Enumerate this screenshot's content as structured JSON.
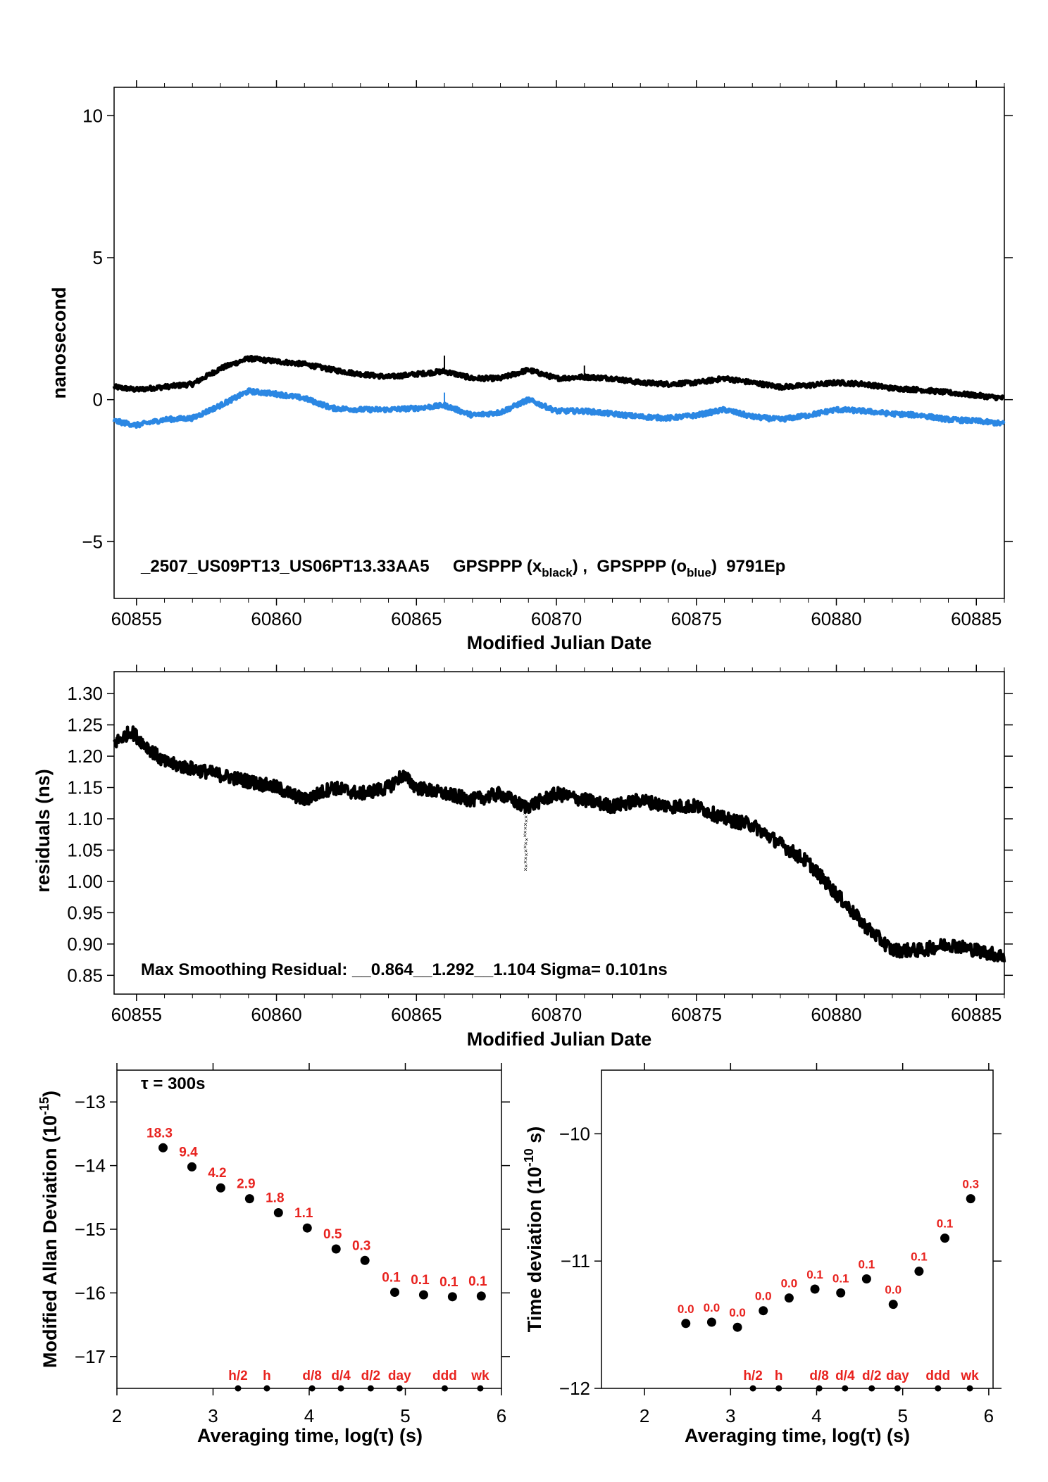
{
  "colors": {
    "black_series": "#000000",
    "blue_series": "#2b87e3",
    "label_red": "#e8231f"
  },
  "chart_data": [
    {
      "type": "line",
      "ylabel": "nanosecond",
      "xlabel": "Modified Julian Date",
      "xlim": [
        60854.2,
        60886
      ],
      "ylim": [
        -7,
        11
      ],
      "xticks": [
        60855,
        60860,
        60865,
        60870,
        60875,
        60880,
        60885
      ],
      "yticks": [
        -5,
        0,
        5,
        10
      ],
      "annotation": {
        "prefix": "_2507_US09PT13_US06PT13.33AA5     GPSPPP (x",
        "sub1": "black",
        "mid": ") ,  GPSPPP (o",
        "sub2": "blue",
        "suffix": ")  9791Ep"
      },
      "series": [
        {
          "color": "#000000",
          "x": [
            60854.2,
            60855,
            60856,
            60857,
            60858,
            60859,
            60860,
            60861,
            60862,
            60863,
            60864,
            60865,
            60866,
            60867,
            60868,
            60869,
            60870,
            60871,
            60872,
            60873,
            60874,
            60875,
            60876,
            60877,
            60878,
            60879,
            60880,
            60881,
            60882,
            60883,
            60884,
            60885,
            60886
          ],
          "y": [
            0.45,
            0.35,
            0.45,
            0.55,
            1.1,
            1.45,
            1.35,
            1.25,
            1.05,
            0.9,
            0.8,
            0.9,
            1.0,
            0.75,
            0.75,
            1.05,
            0.75,
            0.8,
            0.75,
            0.6,
            0.55,
            0.6,
            0.75,
            0.6,
            0.45,
            0.5,
            0.6,
            0.55,
            0.4,
            0.35,
            0.25,
            0.15,
            0.05
          ]
        },
        {
          "color": "#2b87e3",
          "x": [
            60854.2,
            60855,
            60856,
            60857,
            60858,
            60859,
            60860,
            60861,
            60862,
            60863,
            60864,
            60865,
            60866,
            60867,
            60868,
            60869,
            60870,
            60871,
            60872,
            60873,
            60874,
            60875,
            60876,
            60877,
            60878,
            60879,
            60880,
            60881,
            60882,
            60883,
            60884,
            60885,
            60886
          ],
          "y": [
            -0.75,
            -0.9,
            -0.7,
            -0.65,
            -0.2,
            0.3,
            0.2,
            0.05,
            -0.3,
            -0.35,
            -0.35,
            -0.3,
            -0.2,
            -0.55,
            -0.45,
            0.0,
            -0.4,
            -0.4,
            -0.5,
            -0.6,
            -0.65,
            -0.55,
            -0.35,
            -0.6,
            -0.7,
            -0.55,
            -0.35,
            -0.4,
            -0.5,
            -0.55,
            -0.7,
            -0.75,
            -0.85
          ]
        }
      ]
    },
    {
      "type": "scatter",
      "ylabel": "residuals (ns)",
      "xlabel": "Modified Julian Date",
      "xlim": [
        60854.2,
        60886
      ],
      "ylim": [
        0.82,
        1.335
      ],
      "xticks": [
        60855,
        60860,
        60865,
        60870,
        60875,
        60880,
        60885
      ],
      "yticks": [
        0.85,
        0.9,
        0.95,
        1.0,
        1.05,
        1.1,
        1.15,
        1.2,
        1.25,
        1.3
      ],
      "ytick_labels": [
        "0.85",
        "0.90",
        "0.95",
        "1.00",
        "1.05",
        "1.10",
        "1.15",
        "1.20",
        "1.25",
        "1.30"
      ],
      "annotation": "Max Smoothing Residual: __0.864__1.292__1.104  Sigma= 0.101ns",
      "series": [
        {
          "color": "#000000",
          "x": [
            60854.2,
            60854.8,
            60855.5,
            60856,
            60857,
            60858,
            60859,
            60860,
            60861,
            60862,
            60863,
            60864,
            60864.5,
            60865,
            60866,
            60867,
            60868,
            60868.8,
            60869,
            60870,
            60871,
            60872,
            60873,
            60874,
            60875,
            60876,
            60877,
            60878,
            60879,
            60880,
            60881,
            60882,
            60883,
            60884,
            60885,
            60886
          ],
          "y": [
            1.22,
            1.24,
            1.21,
            1.19,
            1.18,
            1.17,
            1.16,
            1.15,
            1.13,
            1.15,
            1.14,
            1.15,
            1.17,
            1.15,
            1.14,
            1.13,
            1.14,
            1.12,
            1.12,
            1.14,
            1.13,
            1.12,
            1.13,
            1.12,
            1.12,
            1.1,
            1.09,
            1.06,
            1.03,
            0.98,
            0.93,
            0.89,
            0.89,
            0.9,
            0.89,
            0.88
          ]
        }
      ],
      "dip": {
        "x": 60868.9,
        "y_min": 1.02,
        "y_max": 1.13
      }
    },
    {
      "type": "scatter",
      "ylabel_prefix": "Modified Allan Deviation (10",
      "ylabel_sup": "-15",
      "ylabel_suffix": ")",
      "xlabel": "Averaging time, log(τ) (s)",
      "xlim": [
        2,
        6
      ],
      "ylim": [
        -17.5,
        -12.5
      ],
      "xticks": [
        2,
        3,
        4,
        5,
        6
      ],
      "yticks": [
        -17,
        -16,
        -15,
        -14,
        -13
      ],
      "tau_note": "τ = 300s",
      "x": [
        2.48,
        2.78,
        3.08,
        3.38,
        3.68,
        3.98,
        4.28,
        4.58,
        4.89,
        5.19,
        5.49,
        5.79
      ],
      "values": [
        -13.72,
        -14.02,
        -14.35,
        -14.52,
        -14.74,
        -14.98,
        -15.31,
        -15.49,
        -15.99,
        -16.03,
        -16.06,
        -16.05
      ],
      "point_labels": [
        "18.3",
        "9.4",
        "4.2",
        "2.9",
        "1.8",
        "1.1",
        "0.5",
        "0.3",
        "0.1",
        "0.1",
        "0.1",
        "0.1"
      ],
      "marker_labels": [
        "h/2",
        "h",
        "d/8",
        "d/4",
        "d/2",
        "day",
        "ddd",
        "wk"
      ],
      "marker_x": [
        3.26,
        3.56,
        4.03,
        4.33,
        4.64,
        4.94,
        5.41,
        5.78
      ]
    },
    {
      "type": "scatter",
      "ylabel_prefix": "Time deviation (10",
      "ylabel_sup": "-10",
      "ylabel_suffix": " s)",
      "xlabel": "Averaging time, log(τ) (s)",
      "xlim": [
        1.5,
        6.05
      ],
      "ylim": [
        -12,
        -9.5
      ],
      "xticks": [
        2,
        3,
        4,
        5,
        6
      ],
      "yticks": [
        -12,
        -11,
        -10
      ],
      "x": [
        2.48,
        2.78,
        3.08,
        3.38,
        3.68,
        3.98,
        4.28,
        4.58,
        4.89,
        5.19,
        5.49,
        5.79
      ],
      "values": [
        -11.49,
        -11.48,
        -11.52,
        -11.39,
        -11.29,
        -11.22,
        -11.25,
        -11.14,
        -11.34,
        -11.08,
        -10.82,
        -10.51
      ],
      "point_labels": [
        "0.0",
        "0.0",
        "0.0",
        "0.0",
        "0.0",
        "0.1",
        "0.1",
        "0.1",
        "0.0",
        "0.1",
        "0.1",
        "0.3"
      ],
      "marker_labels": [
        "h/2",
        "h",
        "d/8",
        "d/4",
        "d/2",
        "day",
        "ddd",
        "wk"
      ],
      "marker_x": [
        3.26,
        3.56,
        4.03,
        4.33,
        4.64,
        4.94,
        5.41,
        5.78
      ]
    }
  ]
}
